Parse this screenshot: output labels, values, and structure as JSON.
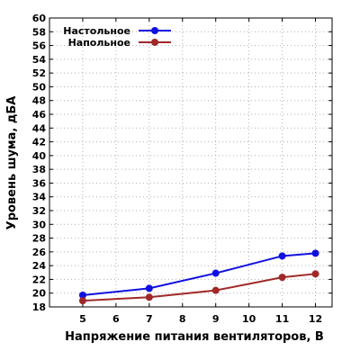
{
  "chart_data": {
    "type": "line",
    "xlabel": "Напряжение питания вентиляторов, В",
    "ylabel": "Уровень шума, дБА",
    "x_ticks": [
      5,
      6,
      7,
      8,
      9,
      10,
      11,
      12
    ],
    "xlim": [
      4,
      12.5
    ],
    "ylim": [
      18,
      60
    ],
    "y_ticks": [
      18,
      20,
      22,
      24,
      26,
      28,
      30,
      32,
      34,
      36,
      38,
      40,
      42,
      44,
      46,
      48,
      50,
      52,
      54,
      56,
      58,
      60
    ],
    "grid": true,
    "legend_position": "top-left",
    "series": [
      {
        "name": "Настольное",
        "color": "#1010e0",
        "x": [
          5,
          7,
          9,
          11,
          12
        ],
        "y": [
          19.7,
          20.7,
          22.9,
          25.4,
          25.8
        ]
      },
      {
        "name": "Напольное",
        "color": "#a02828",
        "x": [
          5,
          7,
          9,
          11,
          12
        ],
        "y": [
          18.9,
          19.4,
          20.4,
          22.3,
          22.8
        ]
      }
    ]
  }
}
